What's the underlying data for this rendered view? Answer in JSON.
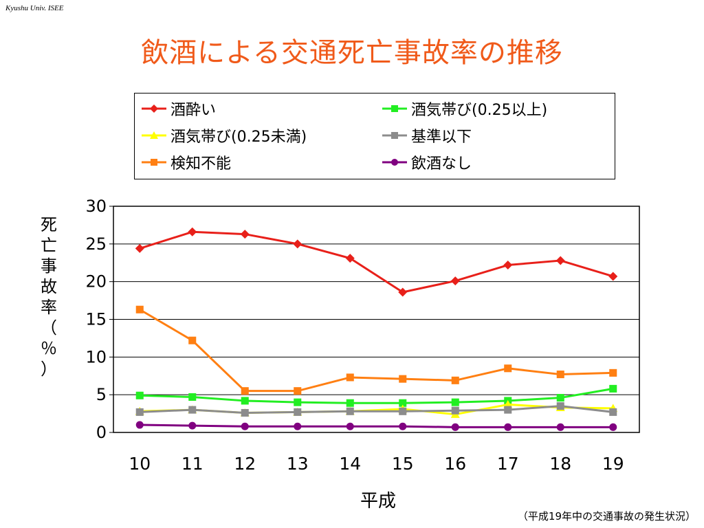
{
  "header": {
    "affiliation": "Kyushu Univ. ISEE"
  },
  "title": "飲酒による交通死亡事故率の推移",
  "footer": {
    "source": "（平成19年中の交通事故の発生状況）"
  },
  "chart_data": {
    "type": "line",
    "title": "飲酒による交通死亡事故率の推移",
    "xlabel": "平成",
    "ylabel": "死亡事故率（％）",
    "ylabel_chars": [
      "死",
      "亡",
      "事",
      "故",
      "率",
      "（",
      "％",
      "）"
    ],
    "x": [
      "10",
      "11",
      "12",
      "13",
      "14",
      "15",
      "16",
      "17",
      "18",
      "19"
    ],
    "ylim": [
      0,
      30
    ],
    "yticks": [
      0,
      5,
      10,
      15,
      20,
      25,
      30
    ],
    "grid": true,
    "legend_position": "top",
    "series": [
      {
        "name": "酒酔い",
        "color": "#e8201a",
        "marker": "diamond",
        "values": [
          24.4,
          26.6,
          26.3,
          25.0,
          23.1,
          18.6,
          20.1,
          22.2,
          22.8,
          20.7
        ]
      },
      {
        "name": "酒気帯び(0.25以上)",
        "color": "#22ee22",
        "marker": "square",
        "values": [
          4.9,
          4.7,
          4.2,
          4.0,
          3.9,
          3.9,
          4.0,
          4.2,
          4.6,
          5.8
        ]
      },
      {
        "name": "酒気帯び(0.25未満)",
        "color": "#ffff00",
        "marker": "triangle",
        "values": [
          2.8,
          3.0,
          2.6,
          2.7,
          2.8,
          3.1,
          2.4,
          3.7,
          3.3,
          3.2
        ]
      },
      {
        "name": "基準以下",
        "color": "#8c8c8c",
        "marker": "square",
        "values": [
          2.7,
          3.0,
          2.6,
          2.7,
          2.8,
          2.8,
          2.9,
          3.0,
          3.5,
          2.7
        ]
      },
      {
        "name": "検知不能",
        "color": "#ff7f12",
        "marker": "square",
        "values": [
          16.3,
          12.2,
          5.5,
          5.5,
          7.3,
          7.1,
          6.9,
          8.5,
          7.7,
          7.9
        ]
      },
      {
        "name": "飲酒なし",
        "color": "#800080",
        "marker": "circle",
        "values": [
          1.0,
          0.9,
          0.8,
          0.8,
          0.8,
          0.8,
          0.7,
          0.7,
          0.7,
          0.7
        ]
      }
    ]
  }
}
